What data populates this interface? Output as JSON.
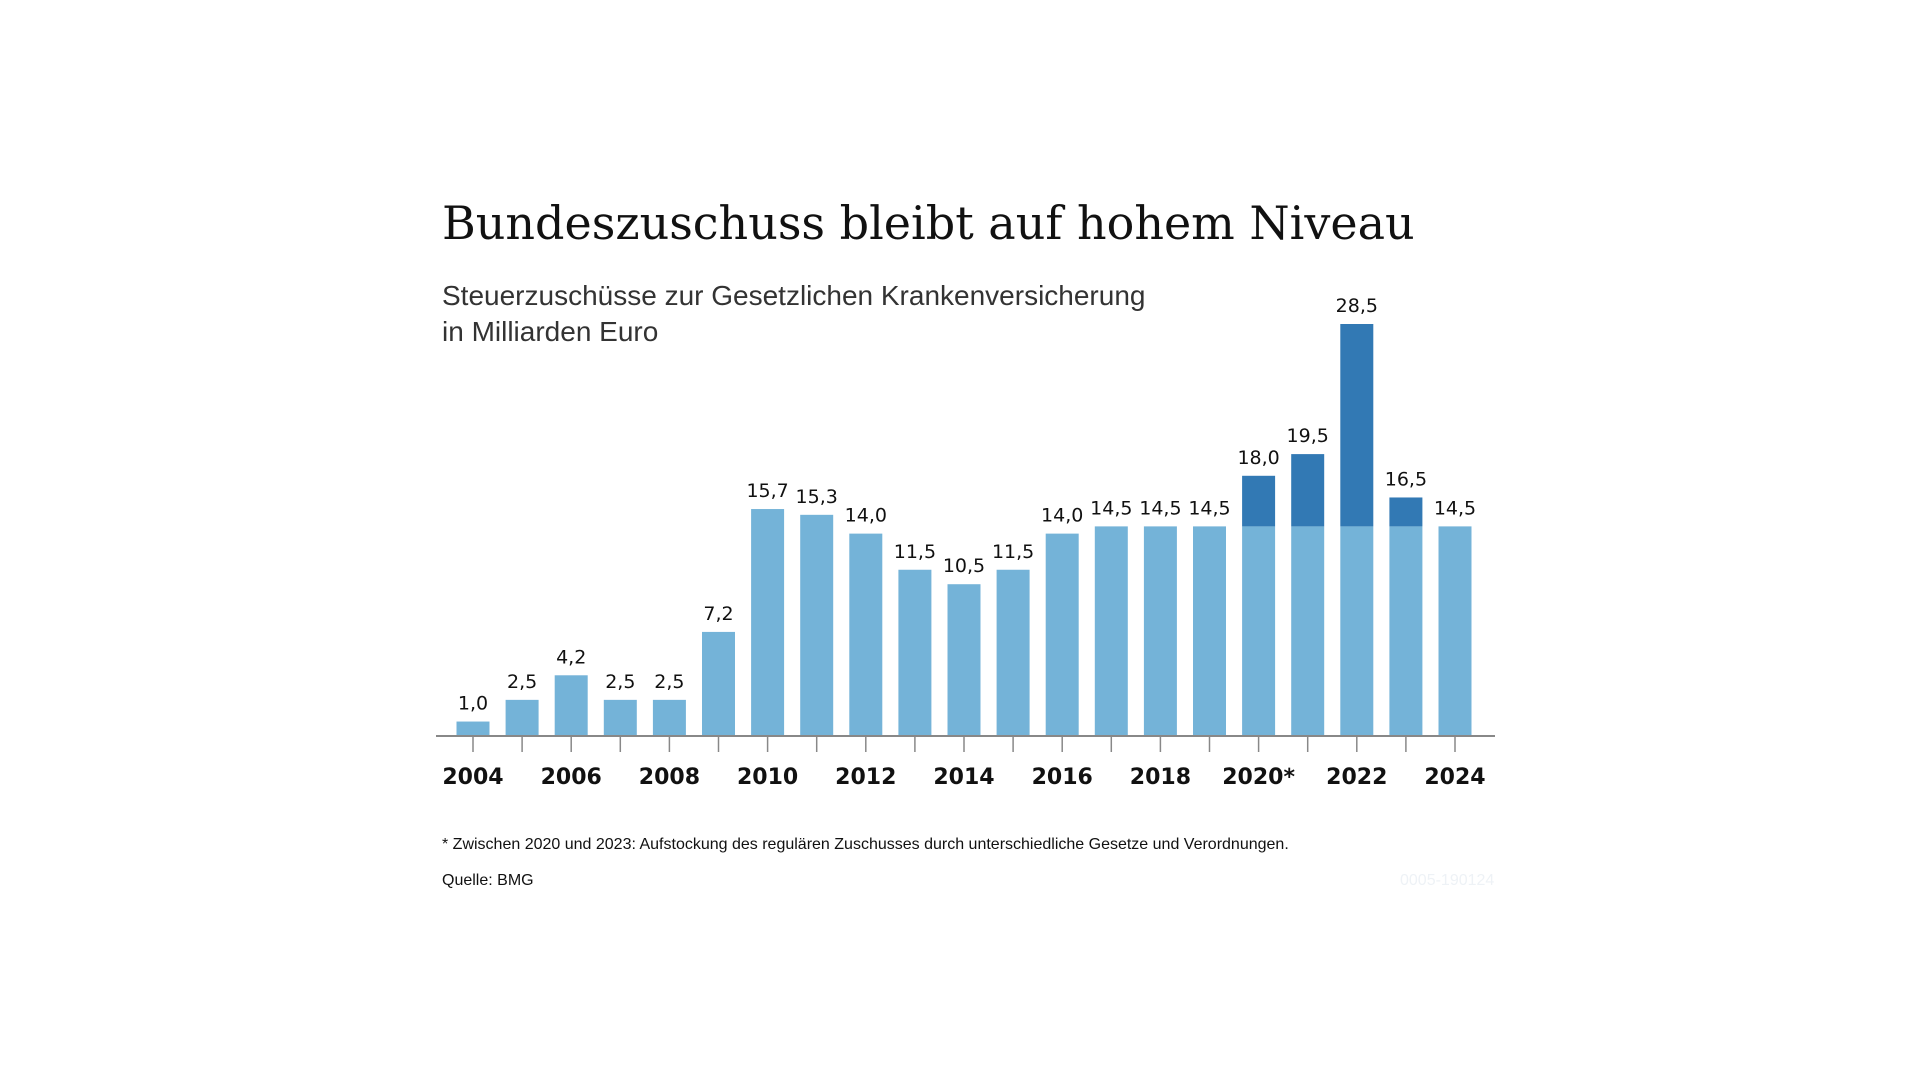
{
  "chart_data": {
    "type": "bar",
    "title": "Bundeszuschuss bleibt auf hohem Niveau",
    "subtitle": [
      "Steuerzuschüsse zur Gesetzlichen Krankenversicherung",
      "in Milliarden Euro"
    ],
    "categories": [
      "2004",
      "2005",
      "2006",
      "2007",
      "2008",
      "2009",
      "2010",
      "2011",
      "2012",
      "2013",
      "2014",
      "2015",
      "2016",
      "2017",
      "2018",
      "2019",
      "2020",
      "2021",
      "2022",
      "2023",
      "2024"
    ],
    "tick_labels": {
      "2004": "2004",
      "2006": "2006",
      "2008": "2008",
      "2010": "2010",
      "2012": "2012",
      "2014": "2014",
      "2016": "2016",
      "2018": "2018",
      "2020": "2020*",
      "2022": "2022",
      "2024": "2024"
    },
    "values": [
      1.0,
      2.5,
      4.2,
      2.5,
      2.5,
      7.2,
      15.7,
      15.3,
      14.0,
      11.5,
      10.5,
      11.5,
      14.0,
      14.5,
      14.5,
      14.5,
      18.0,
      19.5,
      28.5,
      16.5,
      14.5
    ],
    "value_labels": [
      "1,0",
      "2,5",
      "4,2",
      "2,5",
      "2,5",
      "7,2",
      "15,7",
      "15,3",
      "14,0",
      "11,5",
      "10,5",
      "11,5",
      "14,0",
      "14,5",
      "14,5",
      "14,5",
      "18,0",
      "19,5",
      "28,5",
      "16,5",
      "14,5"
    ],
    "series": [
      {
        "role": "regular",
        "values": [
          1.0,
          2.5,
          4.2,
          2.5,
          2.5,
          7.2,
          15.7,
          15.3,
          14.0,
          11.5,
          10.5,
          11.5,
          14.0,
          14.5,
          14.5,
          14.5,
          14.5,
          14.5,
          14.5,
          14.5,
          14.5
        ],
        "color": "#74b3d8"
      },
      {
        "role": "additional",
        "values": [
          0,
          0,
          0,
          0,
          0,
          0,
          0,
          0,
          0,
          0,
          0,
          0,
          0,
          0,
          0,
          0,
          3.5,
          5.0,
          14.0,
          2.0,
          0
        ],
        "color": "#3279b4"
      }
    ],
    "ylim": [
      0,
      28.5
    ],
    "grid": false,
    "axis_color": "#888888"
  },
  "footnote": "* Zwischen 2020 und 2023: Aufstockung des regulären Zuschusses durch unterschiedliche Gesetze und Verordnungen.",
  "source": "Quelle: BMG",
  "code": "0005-190124"
}
